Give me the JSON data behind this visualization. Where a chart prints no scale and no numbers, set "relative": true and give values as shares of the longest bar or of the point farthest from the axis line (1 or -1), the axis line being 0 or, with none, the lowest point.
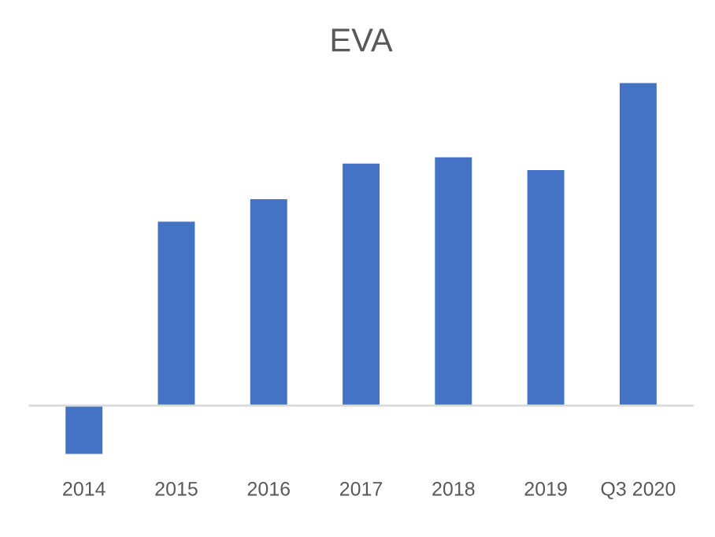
{
  "chart_data": {
    "type": "bar",
    "title": "EVA",
    "relative": true,
    "categories": [
      "2014",
      "2015",
      "2016",
      "2017",
      "2018",
      "2019",
      "Q3 2020"
    ],
    "values": [
      -0.15,
      0.57,
      0.64,
      0.75,
      0.77,
      0.73,
      1
    ],
    "color": "#4472c4",
    "grid": false,
    "legend": false
  }
}
